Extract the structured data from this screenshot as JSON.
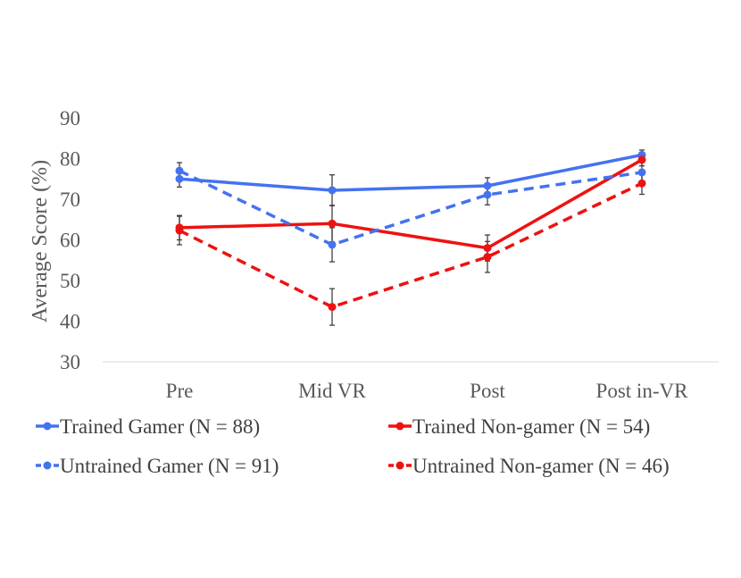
{
  "chart_data": {
    "type": "line",
    "title": "",
    "xlabel": "",
    "ylabel": "Average Score (%)",
    "categories": [
      "Pre",
      "Mid VR",
      "Post",
      "Post in-VR"
    ],
    "ylim": [
      30,
      90
    ],
    "yticks": [
      "30",
      "40",
      "50",
      "60",
      "70",
      "80",
      "90"
    ],
    "grid": false,
    "legend_position": "bottom",
    "series": [
      {
        "name": "Trained Gamer (N = 88)",
        "color": "#4472f0",
        "dashed": false,
        "values": [
          75,
          72.2,
          73.3,
          80.9
        ],
        "errors": [
          2,
          3.8,
          2,
          1.2
        ]
      },
      {
        "name": "Trained Non-gamer (N = 54)",
        "color": "#ee1111",
        "dashed": false,
        "values": [
          63,
          64,
          58,
          79.7
        ],
        "errors": [
          3,
          4.5,
          3.2,
          1.5
        ]
      },
      {
        "name": "Untrained Gamer (N = 91)",
        "color": "#4472f0",
        "dashed": true,
        "values": [
          77,
          58.8,
          71.1,
          76.6
        ],
        "errors": [
          2,
          4.2,
          2.5,
          2.5
        ]
      },
      {
        "name": "Untrained Non-gamer (N = 46)",
        "color": "#ee1111",
        "dashed": true,
        "values": [
          62.3,
          43.5,
          55.8,
          73.9
        ],
        "errors": [
          3.5,
          4.5,
          3.8,
          2.7
        ]
      }
    ]
  }
}
